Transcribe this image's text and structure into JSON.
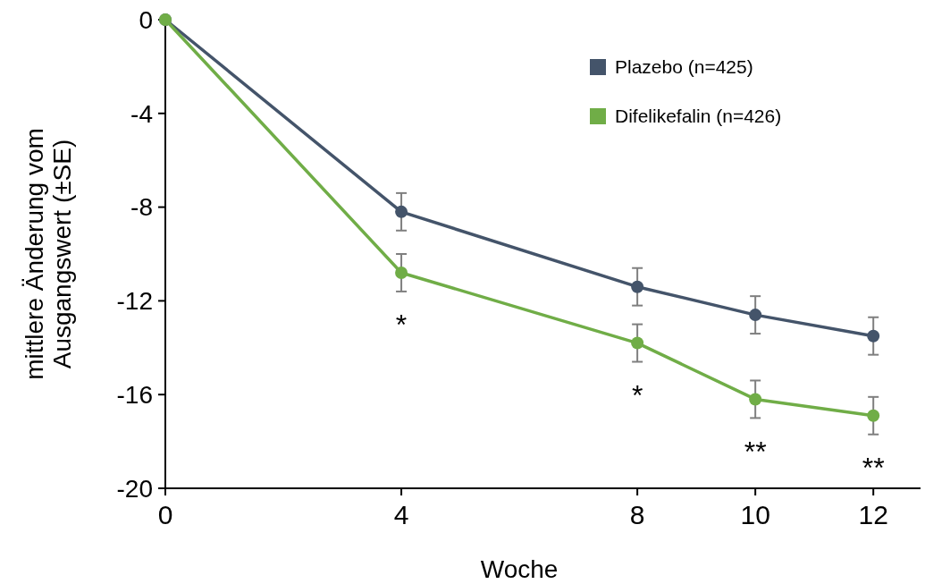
{
  "chart_data": {
    "type": "line",
    "xlabel": "Woche",
    "ylabel": "mittlere Änderung vom Ausgangswert (±SE)",
    "xlim": [
      0,
      12.8
    ],
    "xticks": [
      0,
      4,
      8,
      10,
      12
    ],
    "ylim": [
      -20,
      0
    ],
    "yticks": [
      -20,
      -16,
      -12,
      -8,
      -4,
      0
    ],
    "x": [
      0,
      4,
      8,
      10,
      12
    ],
    "series": [
      {
        "name": "Plazebo (n=425)",
        "color": "#44546a",
        "values": [
          0,
          -8.2,
          -11.4,
          -12.6,
          -13.5
        ],
        "errors": [
          null,
          0.8,
          0.8,
          0.8,
          0.8
        ]
      },
      {
        "name": "Difelikefalin (n=426)",
        "color": "#70ad47",
        "values": [
          0,
          -10.8,
          -13.8,
          -16.2,
          -16.9
        ],
        "errors": [
          null,
          0.8,
          0.8,
          0.8,
          0.8
        ]
      }
    ],
    "annotations": [
      {
        "text": "*",
        "x": 4,
        "y": -10.8
      },
      {
        "text": "*",
        "x": 8,
        "y": -13.8
      },
      {
        "text": "**",
        "x": 10,
        "y": -16.2
      },
      {
        "text": "**",
        "x": 12,
        "y": -16.9
      }
    ],
    "marker": "circle",
    "legend": "top right",
    "grid": false
  }
}
